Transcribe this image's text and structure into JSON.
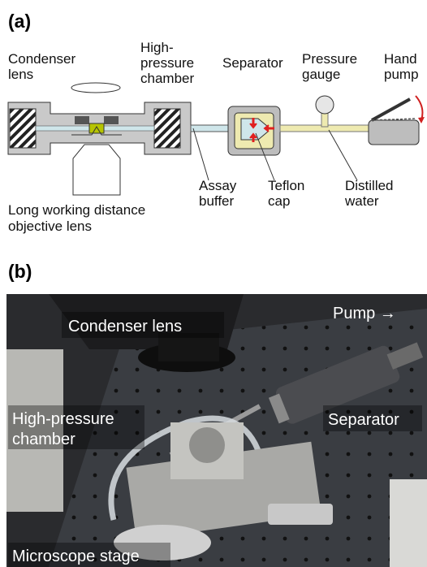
{
  "panel_a": {
    "label": "(a)",
    "labels": [
      {
        "lines": [
          "Condenser",
          "lens"
        ]
      },
      {
        "lines": [
          "High-",
          "pressure",
          "chamber"
        ]
      },
      {
        "lines": [
          "Separator"
        ]
      },
      {
        "lines": [
          "Pressure",
          "gauge"
        ]
      },
      {
        "lines": [
          "Hand",
          "pump"
        ]
      },
      {
        "lines": [
          "Assay",
          "buffer"
        ]
      },
      {
        "lines": [
          "Teflon",
          "cap"
        ]
      },
      {
        "lines": [
          "Distilled",
          "water"
        ]
      },
      {
        "lines": [
          "Long working distance",
          "objective lens"
        ]
      }
    ]
  },
  "panel_b": {
    "label": "(b)",
    "labels": [
      {
        "lines": [
          "Condenser lens"
        ]
      },
      {
        "lines": [
          "Pump →"
        ]
      },
      {
        "lines": [
          "Separator"
        ]
      },
      {
        "lines": [
          "High-pressure",
          "chamber"
        ]
      },
      {
        "lines": [
          "Microscope stage"
        ]
      }
    ]
  }
}
